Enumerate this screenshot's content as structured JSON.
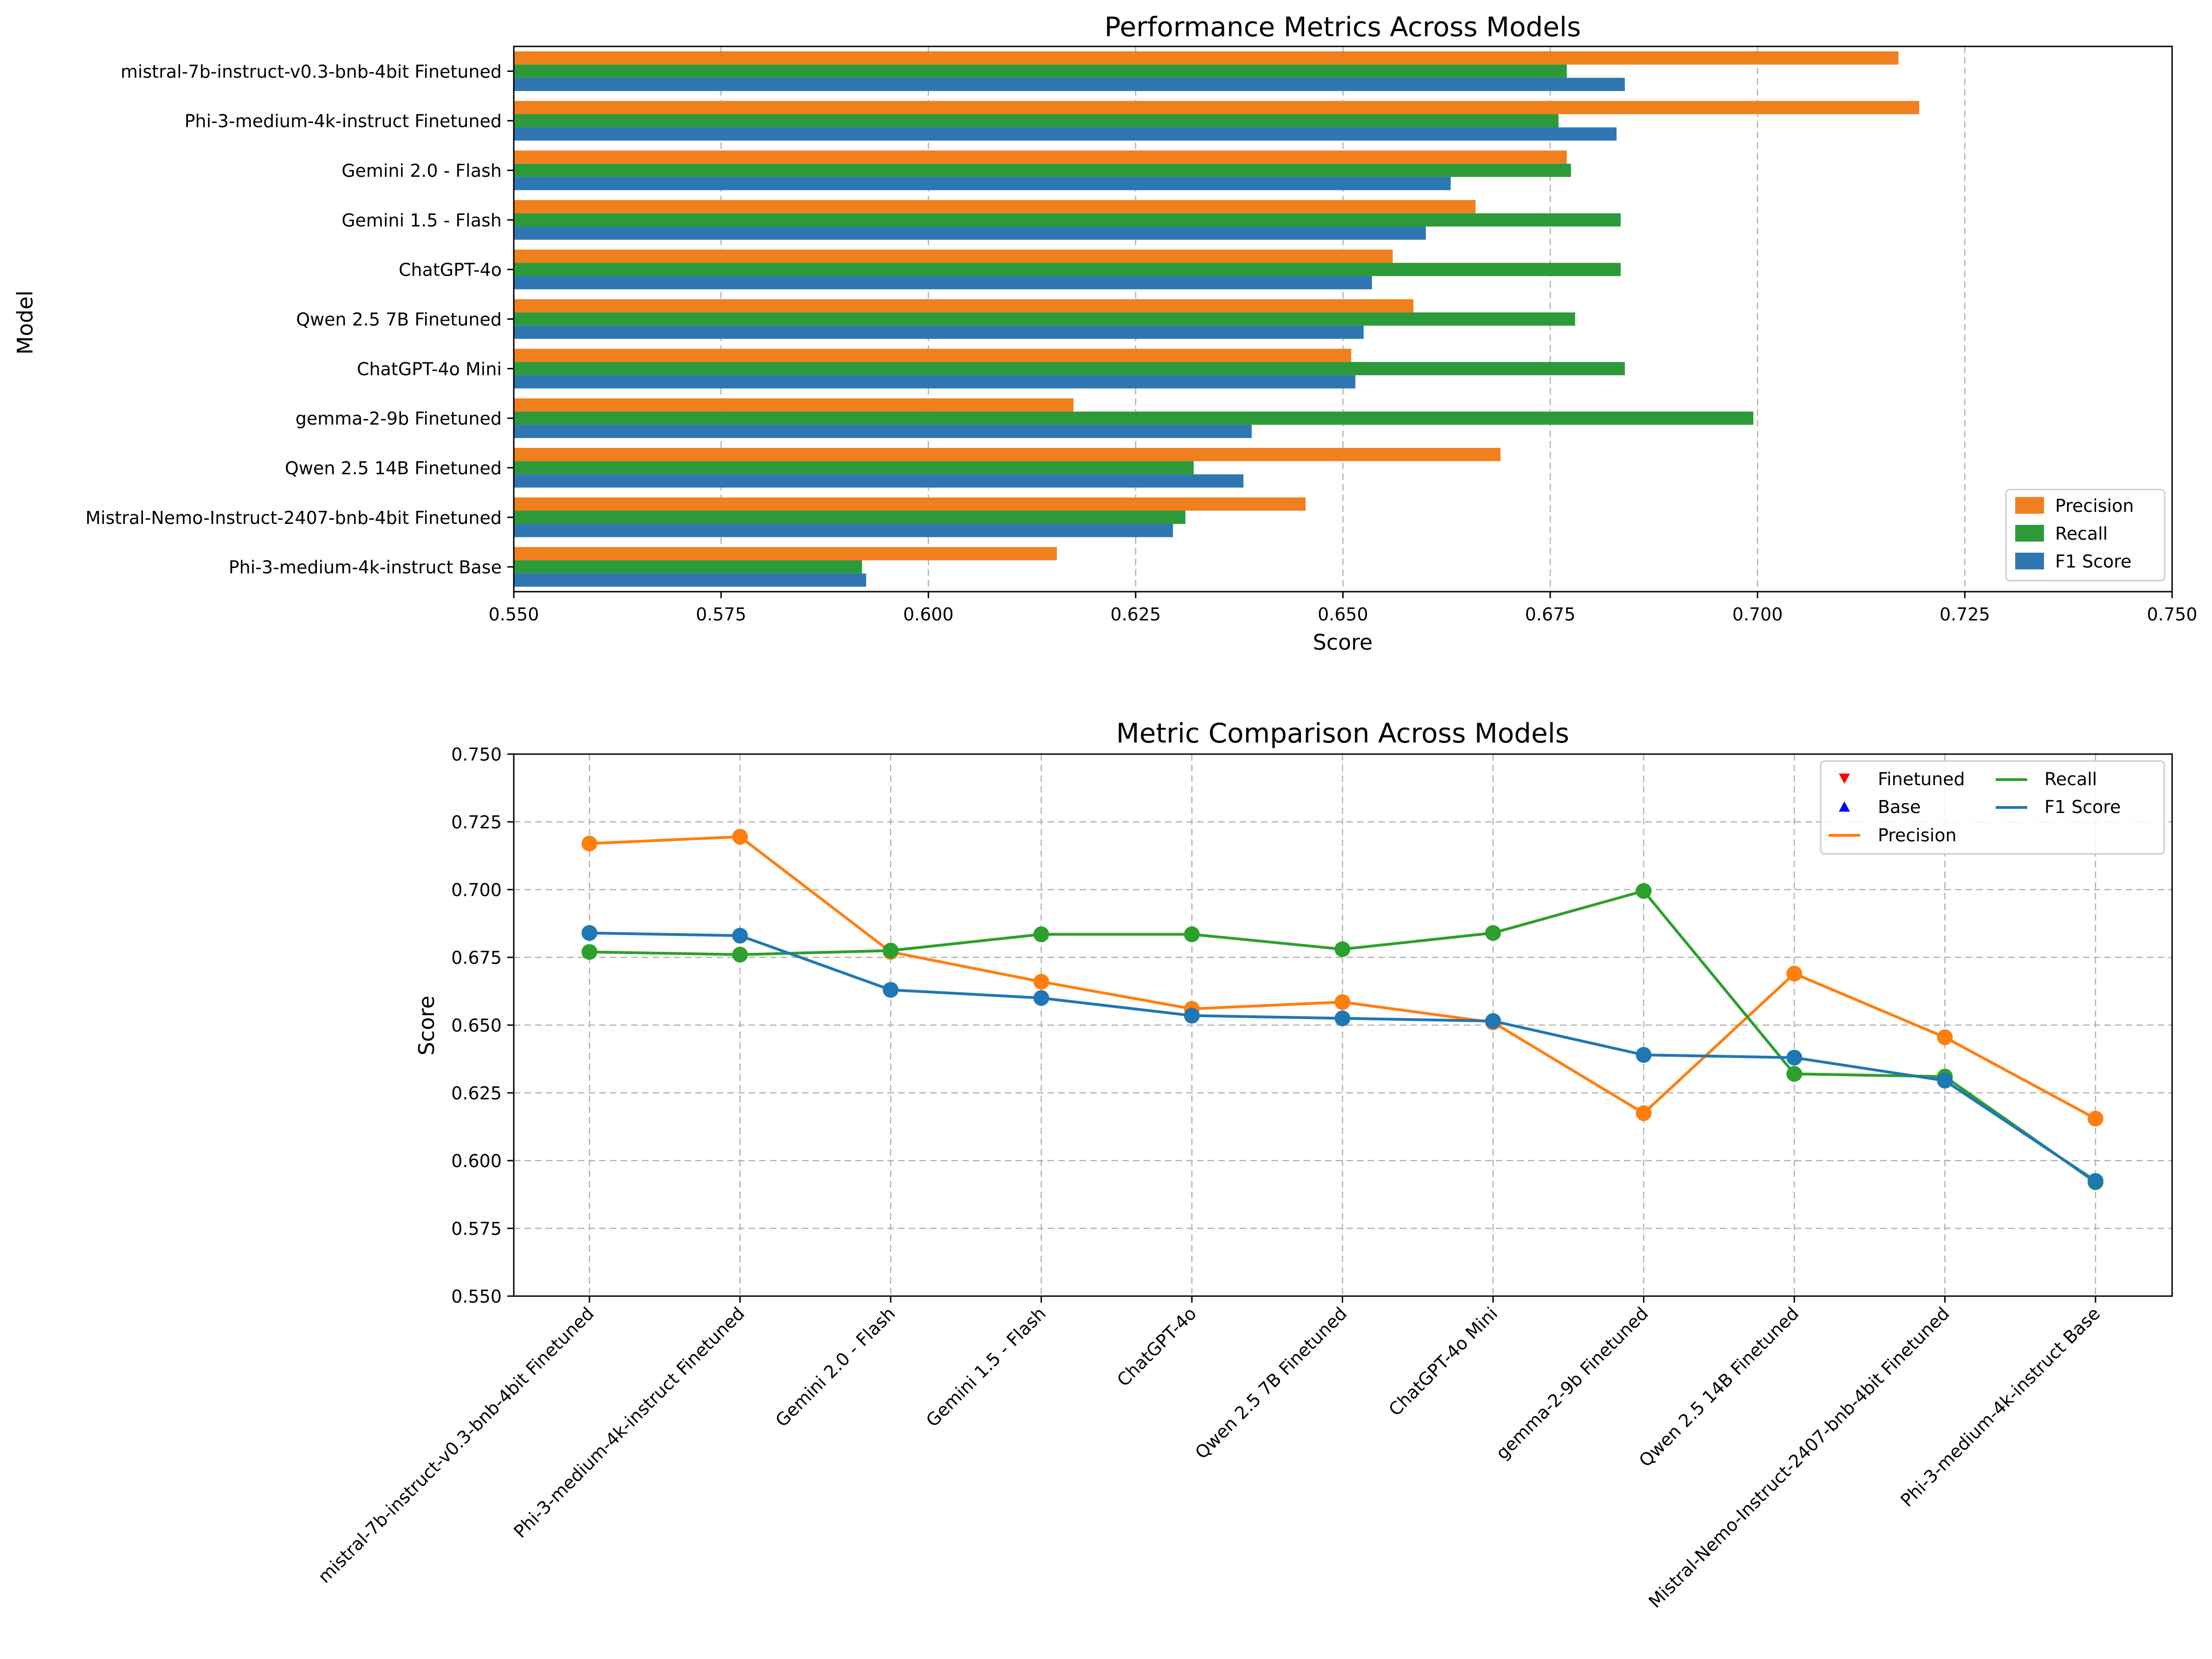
{
  "colors": {
    "precision": "#f07f1e",
    "recall": "#2d9a3a",
    "f1": "#2f77b2",
    "line_precision": "#ff7f0e",
    "line_recall": "#2ca02c",
    "line_f1": "#1f77b4",
    "finetuned_marker": "#ff0000",
    "base_marker": "#0000ff",
    "grid": "#b0b0b0"
  },
  "chart_data": [
    {
      "type": "bar",
      "orientation": "horizontal",
      "title": "Performance Metrics Across Models",
      "xlabel": "Score",
      "ylabel": "Model",
      "xlim": [
        0.55,
        0.75
      ],
      "xticks": [
        "0.550",
        "0.575",
        "0.600",
        "0.625",
        "0.650",
        "0.675",
        "0.700",
        "0.725",
        "0.750"
      ],
      "grid": "x-dashed",
      "legend_position": "lower-right",
      "categories": [
        "mistral-7b-instruct-v0.3-bnb-4bit Finetuned",
        "Phi-3-medium-4k-instruct Finetuned",
        "Gemini 2.0 - Flash",
        "Gemini 1.5 - Flash",
        "ChatGPT-4o",
        "Qwen 2.5 7B Finetuned",
        "ChatGPT-4o Mini",
        "gemma-2-9b Finetuned",
        "Qwen 2.5 14B Finetuned",
        "Mistral-Nemo-Instruct-2407-bnb-4bit Finetuned",
        "Phi-3-medium-4k-instruct Base"
      ],
      "series": [
        {
          "name": "Precision",
          "values": [
            0.717,
            0.7195,
            0.677,
            0.666,
            0.656,
            0.6585,
            0.651,
            0.6175,
            0.669,
            0.6455,
            0.6155
          ]
        },
        {
          "name": "Recall",
          "values": [
            0.677,
            0.676,
            0.6775,
            0.6835,
            0.6835,
            0.678,
            0.684,
            0.6995,
            0.632,
            0.631,
            0.592
          ]
        },
        {
          "name": "F1 Score",
          "values": [
            0.684,
            0.683,
            0.663,
            0.66,
            0.6535,
            0.6525,
            0.6515,
            0.639,
            0.638,
            0.6295,
            0.5925
          ]
        }
      ]
    },
    {
      "type": "line",
      "title": "Metric Comparison Across Models",
      "xlabel": "",
      "ylabel": "Score",
      "ylim": [
        0.55,
        0.75
      ],
      "yticks": [
        "0.550",
        "0.575",
        "0.600",
        "0.625",
        "0.650",
        "0.675",
        "0.700",
        "0.725",
        "0.750"
      ],
      "grid": "both-dashed",
      "legend_position": "upper-right",
      "legend_extra": [
        {
          "name": "Finetuned",
          "marker": "down-triangle"
        },
        {
          "name": "Base",
          "marker": "up-triangle"
        }
      ],
      "categories": [
        "mistral-7b-instruct-v0.3-bnb-4bit Finetuned",
        "Phi-3-medium-4k-instruct Finetuned",
        "Gemini 2.0 - Flash",
        "Gemini 1.5 - Flash",
        "ChatGPT-4o",
        "Qwen 2.5 7B Finetuned",
        "ChatGPT-4o Mini",
        "gemma-2-9b Finetuned",
        "Qwen 2.5 14B Finetuned",
        "Mistral-Nemo-Instruct-2407-bnb-4bit Finetuned",
        "Phi-3-medium-4k-instruct Base"
      ],
      "series": [
        {
          "name": "Precision",
          "values": [
            0.717,
            0.7195,
            0.677,
            0.666,
            0.656,
            0.6585,
            0.651,
            0.6175,
            0.669,
            0.6455,
            0.6155
          ]
        },
        {
          "name": "Recall",
          "values": [
            0.677,
            0.676,
            0.6775,
            0.6835,
            0.6835,
            0.678,
            0.684,
            0.6995,
            0.632,
            0.631,
            0.592
          ]
        },
        {
          "name": "F1 Score",
          "values": [
            0.684,
            0.683,
            0.663,
            0.66,
            0.6535,
            0.6525,
            0.6515,
            0.639,
            0.638,
            0.6295,
            0.5925
          ]
        }
      ]
    }
  ]
}
